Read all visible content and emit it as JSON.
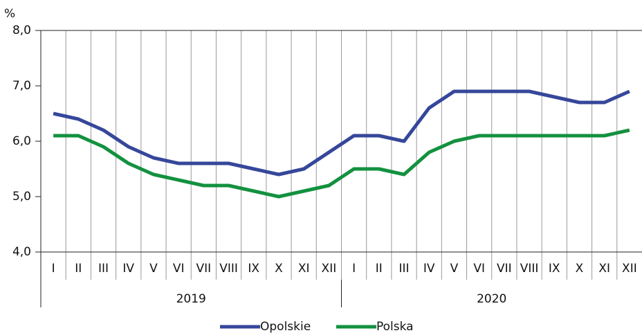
{
  "chart_data": {
    "type": "line",
    "y_unit": "%",
    "categories": [
      "I",
      "II",
      "III",
      "IV",
      "V",
      "VI",
      "VII",
      "VIII",
      "IX",
      "X",
      "XI",
      "XII",
      "I",
      "II",
      "III",
      "IV",
      "V",
      "VI",
      "VII",
      "VIII",
      "IX",
      "X",
      "XI",
      "XII"
    ],
    "groups": [
      "2019",
      "2020"
    ],
    "series": [
      {
        "name": "Opolskie",
        "color": "#36479a",
        "values": [
          6.5,
          6.4,
          6.2,
          5.9,
          5.7,
          5.6,
          5.6,
          5.6,
          5.5,
          5.4,
          5.5,
          5.8,
          6.1,
          6.1,
          6.0,
          6.6,
          6.9,
          6.9,
          6.9,
          6.9,
          6.8,
          6.7,
          6.7,
          6.9
        ]
      },
      {
        "name": "Polska",
        "color": "#13913f",
        "values": [
          6.1,
          6.1,
          5.9,
          5.6,
          5.4,
          5.3,
          5.2,
          5.2,
          5.1,
          5.0,
          5.1,
          5.2,
          5.5,
          5.5,
          5.4,
          5.8,
          6.0,
          6.1,
          6.1,
          6.1,
          6.1,
          6.1,
          6.1,
          6.2
        ]
      }
    ],
    "ylim": [
      4,
      8
    ],
    "yticks": [
      {
        "value": 4,
        "label": "4,0"
      },
      {
        "value": 5,
        "label": "5,0"
      },
      {
        "value": 6,
        "label": "6,0"
      },
      {
        "value": 7,
        "label": "7,0"
      },
      {
        "value": 8,
        "label": "8,0"
      }
    ],
    "grid": true,
    "legend": "bottom"
  }
}
